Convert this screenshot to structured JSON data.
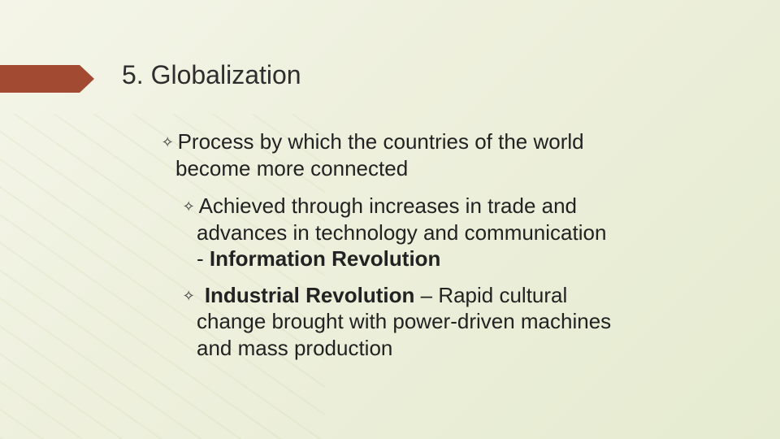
{
  "accent_color": "#a24a32",
  "title": "5. Globalization",
  "bullets": {
    "l1": {
      "line1": "Process by which the countries of the world",
      "line2": "become more connected"
    },
    "l2a": {
      "line1": "Achieved through increases in trade and",
      "line2": "advances in technology and communication",
      "line3_prefix": "- ",
      "line3_bold": "Information Revolution"
    },
    "l2b": {
      "bold": "Industrial Revolution",
      "rest1": " – Rapid cultural",
      "line2": "change brought with power-driven machines",
      "line3": "and mass production"
    }
  }
}
